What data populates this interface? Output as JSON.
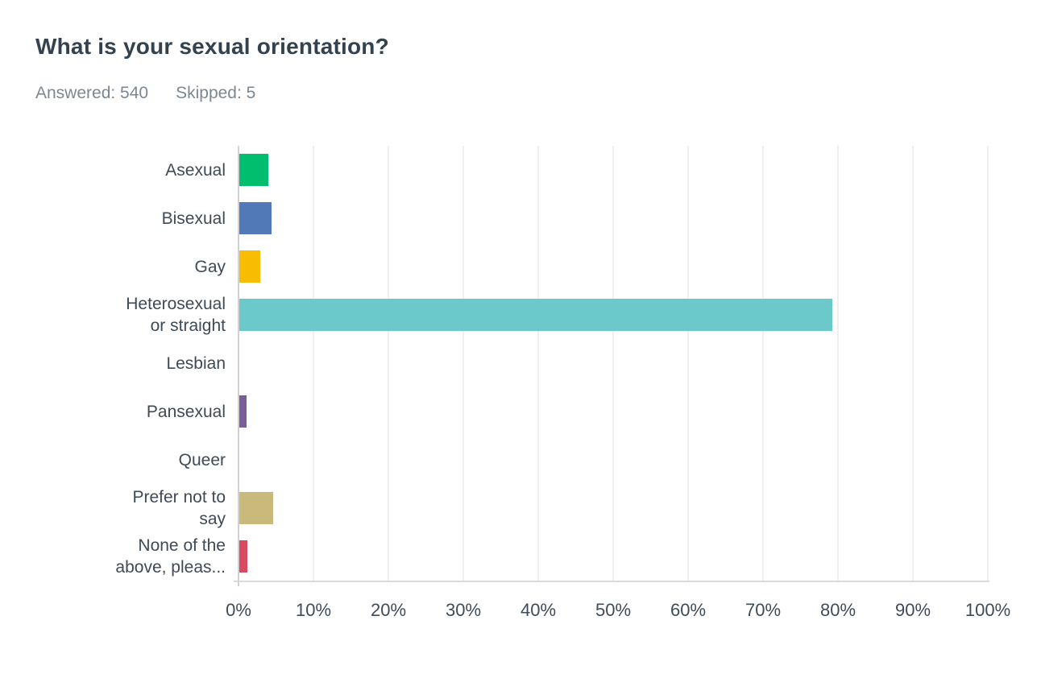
{
  "header": {
    "title": "What is your sexual orientation?",
    "answered": "Answered: 540",
    "skipped": "Skipped: 5"
  },
  "chart_data": {
    "type": "bar",
    "orientation": "horizontal",
    "title": "What is your sexual orientation?",
    "answered_count": 540,
    "skipped_count": 5,
    "categories": [
      "Asexual",
      "Bisexual",
      "Gay",
      "Heterosexual or straight",
      "Lesbian",
      "Pansexual",
      "Queer",
      "Prefer not to say",
      "None of the above, pleas..."
    ],
    "category_display_lines": [
      [
        "Asexual"
      ],
      [
        "Bisexual"
      ],
      [
        "Gay"
      ],
      [
        "Heterosexual",
        "or straight"
      ],
      [
        "Lesbian"
      ],
      [
        "Pansexual"
      ],
      [
        "Queer"
      ],
      [
        "Prefer not to",
        "say"
      ],
      [
        "None of the",
        "above, pleas..."
      ]
    ],
    "values": [
      4.0,
      4.4,
      2.9,
      79.3,
      0,
      1.1,
      0,
      4.6,
      1.2
    ],
    "unit": "%",
    "bar_colors": [
      "#00BE6E",
      "#5179B8",
      "#F8BC03",
      "#6BC9CB",
      null,
      "#7B5E97",
      null,
      "#C9B97A",
      "#D9495F"
    ],
    "xlabel": "",
    "ylabel": "",
    "xlim": [
      0,
      100
    ],
    "x_ticks": [
      "0%",
      "10%",
      "20%",
      "30%",
      "40%",
      "50%",
      "60%",
      "70%",
      "80%",
      "90%",
      "100%"
    ],
    "grid": "vertical",
    "legend": "none",
    "text_color": "#3E4A57",
    "gridline_color": "#EFEFEF",
    "axis_color": "#D2D2D2",
    "background_color": "#FFFFFF"
  }
}
